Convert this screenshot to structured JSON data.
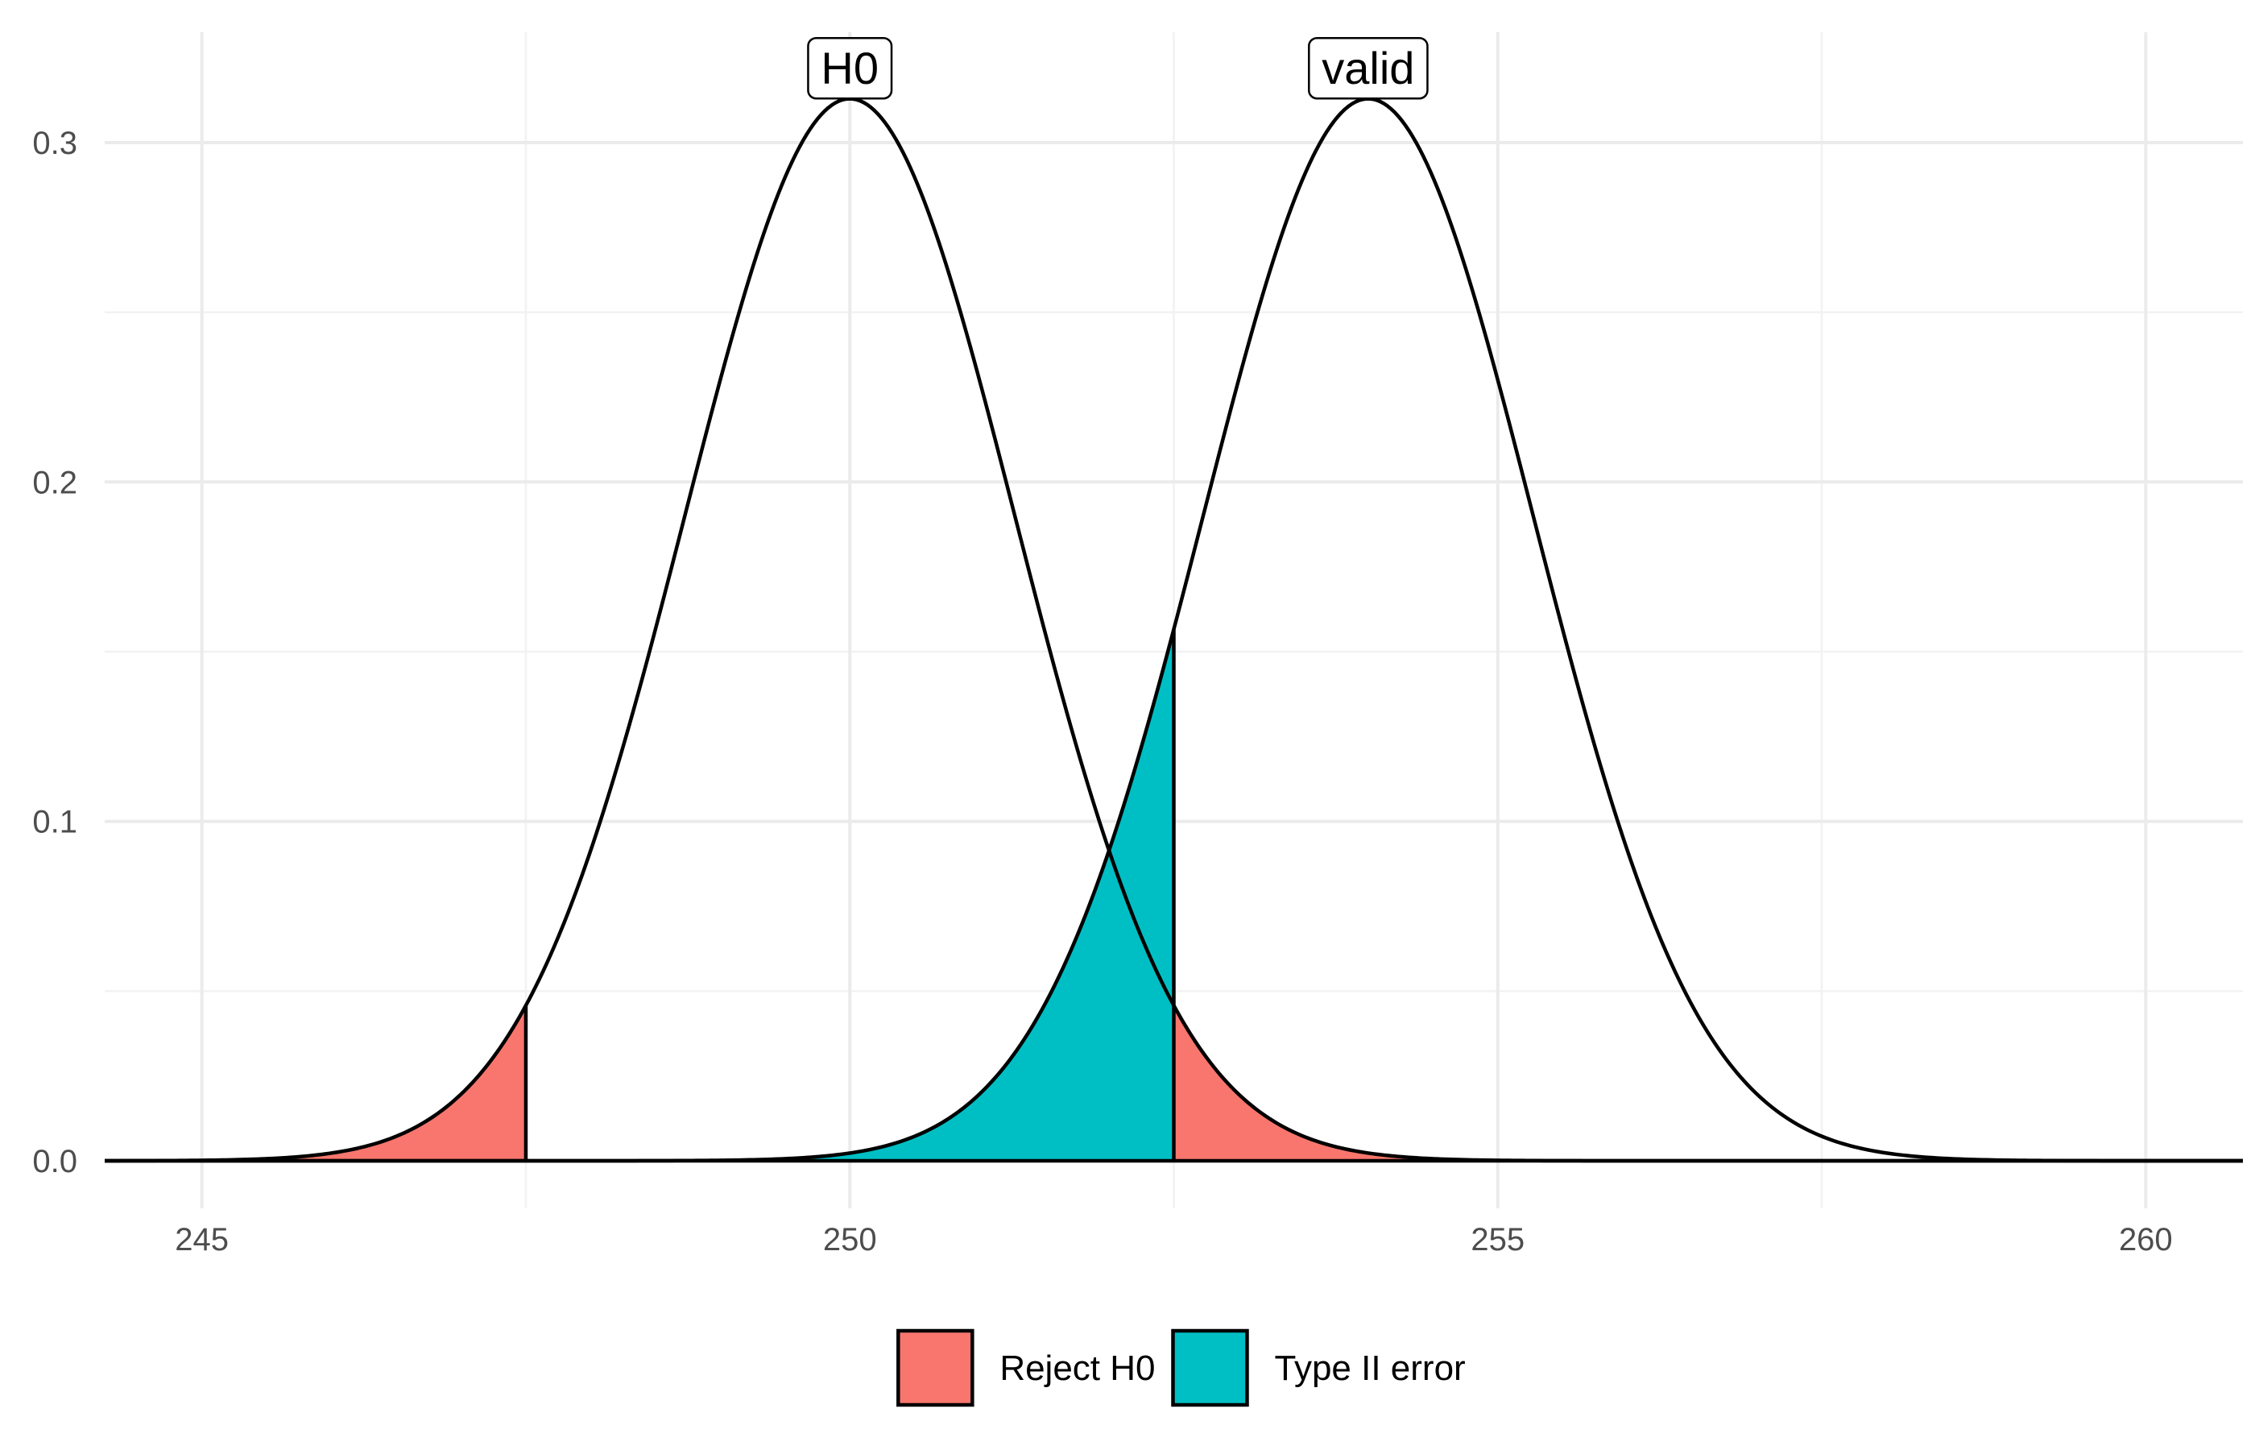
{
  "chart_data": {
    "type": "area",
    "title": "",
    "xlabel": "",
    "ylabel": "",
    "xlim": [
      244.25,
      260.75
    ],
    "ylim": [
      -0.014,
      0.3325
    ],
    "x_ticks": [
      {
        "value": 245,
        "label": "245"
      },
      {
        "value": 250,
        "label": "250"
      },
      {
        "value": 255,
        "label": "255"
      },
      {
        "value": 260,
        "label": "260"
      }
    ],
    "y_ticks": [
      {
        "value": 0.0,
        "label": "0.0"
      },
      {
        "value": 0.1,
        "label": "0.1"
      },
      {
        "value": 0.2,
        "label": "0.2"
      },
      {
        "value": 0.3,
        "label": "0.3"
      }
    ],
    "minor_x_grid": [
      247.5,
      252.5,
      257.5
    ],
    "minor_y_grid": [
      0.05,
      0.15,
      0.25
    ],
    "grid": true,
    "series": [
      {
        "name": "H0",
        "distribution": "normal",
        "mean": 250,
        "sd": 1.275,
        "x_range": [
          244.25,
          260.75
        ]
      },
      {
        "name": "valid",
        "distribution": "normal",
        "mean": 254,
        "sd": 1.275,
        "x_range": [
          244.25,
          260.75
        ]
      }
    ],
    "curve_labels": [
      {
        "text": "H0",
        "x": 250,
        "y": 0.322
      },
      {
        "text": "valid",
        "x": 254,
        "y": 0.322
      }
    ],
    "critical_values": [
      247.5,
      252.5
    ],
    "shaded_regions": [
      {
        "legend": "Reject H0",
        "curve": "H0",
        "from": 244.25,
        "to": 247.5,
        "color": "#F8766D"
      },
      {
        "legend": "Type II error",
        "curve": "valid",
        "from": 244.25,
        "to": 252.5,
        "color": "#00BFC4"
      },
      {
        "legend": "Reject H0",
        "curve": "H0",
        "from": 252.5,
        "to": 260.75,
        "color": "#F8766D"
      }
    ],
    "legend": {
      "position": "bottom",
      "entries": [
        {
          "label": "Reject H0",
          "color": "#F8766D"
        },
        {
          "label": "Type II error",
          "color": "#00BFC4"
        }
      ]
    }
  },
  "colors": {
    "background": "#FFFFFF",
    "grid_major": "#EBEBEB",
    "grid_minor": "#F2F2F2",
    "curve": "#000000",
    "tick_text": "#4D4D4D",
    "reject": "#F8766D",
    "type2": "#00BFC4"
  }
}
